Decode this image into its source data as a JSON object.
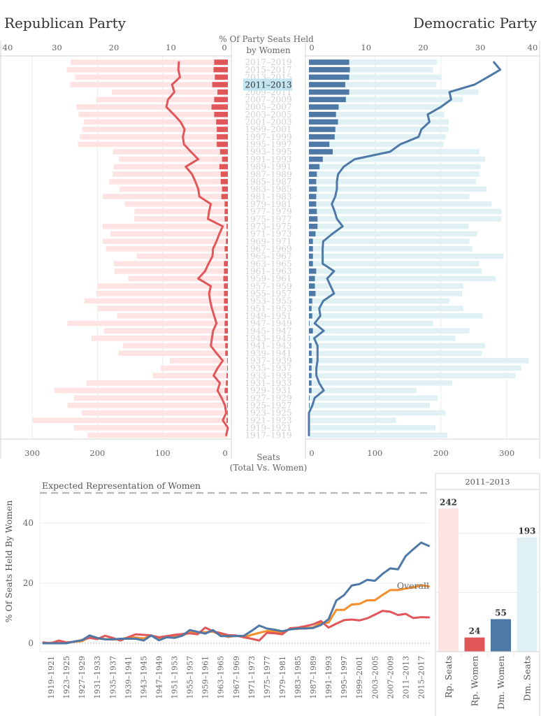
{
  "titles": {
    "republican": "Republican Party",
    "democratic": "Democratic Party"
  },
  "center_column": {
    "header_line1": "% Of Party Seats Held",
    "header_line2": "by Women",
    "footer_line1": "Seats",
    "footer_line2": "(Total Vs. Women)",
    "selected_term": "2011–2013"
  },
  "colors": {
    "rep_seats": "#fde3e3",
    "rep_women": "#e15759",
    "dem_women": "#4e79a7",
    "dem_seats": "#dff1f3",
    "overall": "#f28e2b",
    "selection": "#c3e5f1"
  },
  "chart_data": [
    {
      "type": "bar",
      "title": "Party seats held (total vs. women) and % of party seats held by women",
      "orientation": "horizontal-diverging",
      "pct_axis_label": "% Of Party Seats Held by Women",
      "seat_axis_label": "Seats (Total Vs. Women)",
      "pct_ticks": [
        0,
        10,
        20,
        30,
        40
      ],
      "seat_ticks": [
        0,
        100,
        200,
        300
      ],
      "pct_range": [
        0,
        40
      ],
      "seat_range": [
        0,
        350
      ],
      "grid": true,
      "categories": [
        "2017–2019",
        "2015–2017",
        "2013–2015",
        "2011–2013",
        "2009–2011",
        "2007–2009",
        "2005–2007",
        "2003–2005",
        "2001–2003",
        "1999–2001",
        "1997–1999",
        "1995–1997",
        "1993–1995",
        "1991–1993",
        "1989–1991",
        "1987–1989",
        "1985–1987",
        "1983–1985",
        "1981–1983",
        "1979–1981",
        "1977–1979",
        "1975–1977",
        "1973–1975",
        "1971–1973",
        "1969–1971",
        "1967–1969",
        "1965–1967",
        "1963–1965",
        "1961–1963",
        "1959–1961",
        "1957–1959",
        "1955–1957",
        "1953–1955",
        "1951–1953",
        "1949–1951",
        "1947–1949",
        "1945–1947",
        "1943–1945",
        "1941–1943",
        "1939–1941",
        "1937–1939",
        "1935–1937",
        "1933–1935",
        "1931–1933",
        "1929–1931",
        "1927–1929",
        "1925–1927",
        "1923–1925",
        "1921–1923",
        "1919–1921",
        "1917–1919"
      ],
      "series": [
        {
          "name": "Republican total seats",
          "values": [
            241,
            247,
            234,
            242,
            178,
            202,
            232,
            229,
            221,
            223,
            227,
            230,
            176,
            167,
            175,
            177,
            182,
            166,
            192,
            158,
            143,
            144,
            192,
            180,
            192,
            187,
            140,
            175,
            174,
            153,
            200,
            202,
            220,
            199,
            170,
            246,
            190,
            209,
            161,
            168,
            89,
            103,
            115,
            217,
            266,
            236,
            246,
            224,
            299,
            236,
            215
          ]
        },
        {
          "name": "Republican women seats",
          "values": [
            21,
            22,
            20,
            24,
            16,
            21,
            25,
            21,
            18,
            17,
            17,
            17,
            12,
            9,
            13,
            11,
            11,
            9,
            10,
            5,
            5,
            5,
            2,
            2,
            3,
            5,
            3,
            6,
            6,
            7,
            6,
            6,
            6,
            6,
            4,
            5,
            5,
            6,
            4,
            4,
            1,
            1,
            2,
            3,
            5,
            2,
            1,
            1,
            2,
            1,
            0
          ]
        },
        {
          "name": "Republican % seats held by women",
          "values": [
            8.6,
            8.7,
            8.4,
            9.8,
            9.4,
            10.5,
            10.8,
            9.5,
            8.3,
            7.6,
            7.9,
            7.7,
            6.5,
            5.2,
            7.4,
            6.3,
            5.7,
            5.2,
            5.0,
            3.0,
            3.3,
            3.5,
            0.9,
            1.5,
            2.0,
            2.6,
            2.7,
            3.4,
            4.0,
            5.2,
            3.0,
            3.3,
            3.1,
            2.8,
            2.4,
            2.0,
            2.6,
            2.8,
            3.0,
            2.0,
            0.9,
            1.8,
            2.5,
            1.4,
            1.8,
            1.1,
            0.5,
            0.3,
            0.9,
            0.0,
            0.3
          ]
        },
        {
          "name": "Democratic total seats",
          "values": [
            194,
            188,
            201,
            193,
            257,
            233,
            202,
            205,
            212,
            211,
            207,
            204,
            258,
            267,
            260,
            258,
            253,
            269,
            243,
            277,
            292,
            291,
            242,
            255,
            243,
            248,
            295,
            258,
            262,
            283,
            234,
            232,
            213,
            234,
            263,
            188,
            243,
            222,
            267,
            262,
            333,
            322,
            313,
            217,
            163,
            195,
            183,
            207,
            132,
            192,
            210
          ]
        },
        {
          "name": "Democratic women seats",
          "values": [
            61,
            62,
            61,
            55,
            61,
            56,
            45,
            41,
            44,
            40,
            39,
            31,
            36,
            21,
            16,
            12,
            11,
            12,
            11,
            11,
            12,
            13,
            13,
            10,
            6,
            6,
            6,
            6,
            11,
            9,
            9,
            10,
            5,
            4,
            5,
            1,
            6,
            1,
            4,
            4,
            5,
            4,
            4,
            4,
            4,
            1,
            1,
            0,
            0,
            0,
            0
          ]
        },
        {
          "name": "Democratic % seats held by women",
          "values": [
            32.4,
            33.5,
            31.3,
            29.0,
            24.6,
            24.9,
            23.1,
            20.8,
            21.1,
            19.7,
            19.2,
            16.0,
            14.2,
            8.0,
            6.1,
            5.1,
            4.9,
            4.9,
            4.6,
            4.0,
            4.5,
            4.9,
            5.9,
            4.1,
            2.5,
            2.4,
            2.4,
            2.4,
            4.4,
            3.2,
            3.8,
            4.4,
            2.5,
            1.8,
            2.0,
            1.0,
            2.6,
            0.9,
            1.5,
            1.5,
            1.5,
            1.3,
            1.3,
            1.8,
            2.6,
            1.0,
            0.6,
            0,
            0,
            0,
            0
          ]
        }
      ]
    },
    {
      "type": "line",
      "title": "",
      "xlabel": "",
      "ylabel": "% Of Seats Held By Women",
      "yticks": [
        0,
        20,
        40
      ],
      "ylim": [
        -3,
        52
      ],
      "grid": true,
      "reference_line": {
        "label": "Expected Representation of Women",
        "value": 50
      },
      "x": [
        "1917–1919",
        "1919–1921",
        "1921–1923",
        "1923–1925",
        "1925–1927",
        "1927–1929",
        "1929–1931",
        "1931–1933",
        "1933–1935",
        "1935–1937",
        "1937–1939",
        "1939–1941",
        "1941–1943",
        "1943–1945",
        "1945–1947",
        "1947–1949",
        "1949–1951",
        "1951–1953",
        "1953–1955",
        "1955–1957",
        "1957–1959",
        "1959–1961",
        "1961–1963",
        "1963–1965",
        "1965–1967",
        "1967–1969",
        "1969–1971",
        "1971–1973",
        "1973–1975",
        "1975–1977",
        "1977–1979",
        "1979–1981",
        "1981–1983",
        "1983–1985",
        "1985–1987",
        "1987–1989",
        "1989–1991",
        "1991–1993",
        "1993–1995",
        "1995–1997",
        "1997–1999",
        "1999–2001",
        "2001–2003",
        "2003–2005",
        "2005–2007",
        "2007–2009",
        "2009–2011",
        "2011–2013",
        "2013–2015",
        "2015–2017",
        "2017–2019"
      ],
      "x_tick_labels": [
        "1919–1921",
        "1923–1925",
        "1927–1929",
        "1931–1933",
        "1935–1937",
        "1939–1941",
        "1943–1945",
        "1947–1949",
        "1951–1953",
        "1955–1957",
        "1959–1961",
        "1963–1965",
        "1967–1969",
        "1971–1973",
        "1975–1977",
        "1979–1981",
        "1983–1985",
        "1987–1989",
        "1991–1993",
        "1995–1997",
        "1999–2001",
        "2003–2005",
        "2007–2009",
        "2011–2013",
        "2015–2017"
      ],
      "series": [
        {
          "name": "Overall",
          "label": "Overall",
          "values": [
            0.0,
            0.2,
            0.5,
            0.2,
            0.5,
            0.7,
            2.1,
            1.6,
            1.4,
            1.2,
            1.4,
            1.9,
            1.9,
            1.6,
            2.5,
            1.4,
            2.1,
            2.3,
            2.5,
            3.7,
            3.5,
            3.7,
            3.9,
            2.8,
            2.1,
            2.5,
            2.1,
            2.8,
            3.5,
            4.1,
            3.9,
            3.7,
            4.8,
            4.8,
            5.1,
            5.3,
            6.7,
            6.9,
            11.1,
            11.1,
            12.9,
            13.1,
            14.3,
            14.3,
            16.1,
            17.7,
            17.7,
            18.2,
            18.6,
            19.3,
            18.9
          ]
        },
        {
          "name": "Republican",
          "values": [
            0.3,
            0.0,
            0.9,
            0.3,
            0.5,
            1.1,
            1.8,
            1.4,
            2.5,
            1.8,
            0.9,
            2.0,
            3.0,
            2.8,
            2.6,
            2.0,
            2.4,
            2.8,
            3.1,
            3.3,
            3.0,
            5.2,
            4.0,
            3.4,
            2.7,
            2.6,
            2.0,
            1.5,
            0.9,
            3.5,
            3.3,
            3.0,
            5.0,
            5.2,
            5.7,
            6.3,
            7.4,
            5.2,
            6.5,
            7.7,
            7.9,
            7.6,
            8.3,
            9.5,
            10.8,
            10.5,
            9.4,
            9.8,
            8.4,
            8.7,
            8.6
          ]
        },
        {
          "name": "Democratic",
          "values": [
            0,
            0,
            0,
            0,
            0.6,
            1.0,
            2.6,
            1.8,
            1.3,
            1.3,
            1.5,
            1.5,
            1.5,
            0.9,
            2.6,
            1.0,
            2.0,
            1.8,
            2.5,
            4.4,
            3.8,
            3.2,
            4.4,
            2.4,
            2.4,
            2.4,
            2.5,
            4.1,
            5.9,
            4.9,
            4.5,
            4.0,
            4.6,
            4.9,
            4.9,
            5.1,
            6.1,
            8.0,
            14.2,
            16.0,
            19.2,
            19.7,
            21.1,
            20.8,
            23.1,
            24.9,
            24.6,
            29.0,
            31.3,
            33.5,
            32.4
          ]
        }
      ]
    },
    {
      "type": "bar",
      "title": "2011–2013",
      "categories": [
        "Rp. Seats",
        "Rp. Women",
        "Dm. Women",
        "Dm. Seats"
      ],
      "values": [
        242,
        24,
        55,
        193
      ],
      "ylim": [
        0,
        250
      ],
      "y_gridlines": [
        100,
        200
      ],
      "data_labels": true
    }
  ]
}
